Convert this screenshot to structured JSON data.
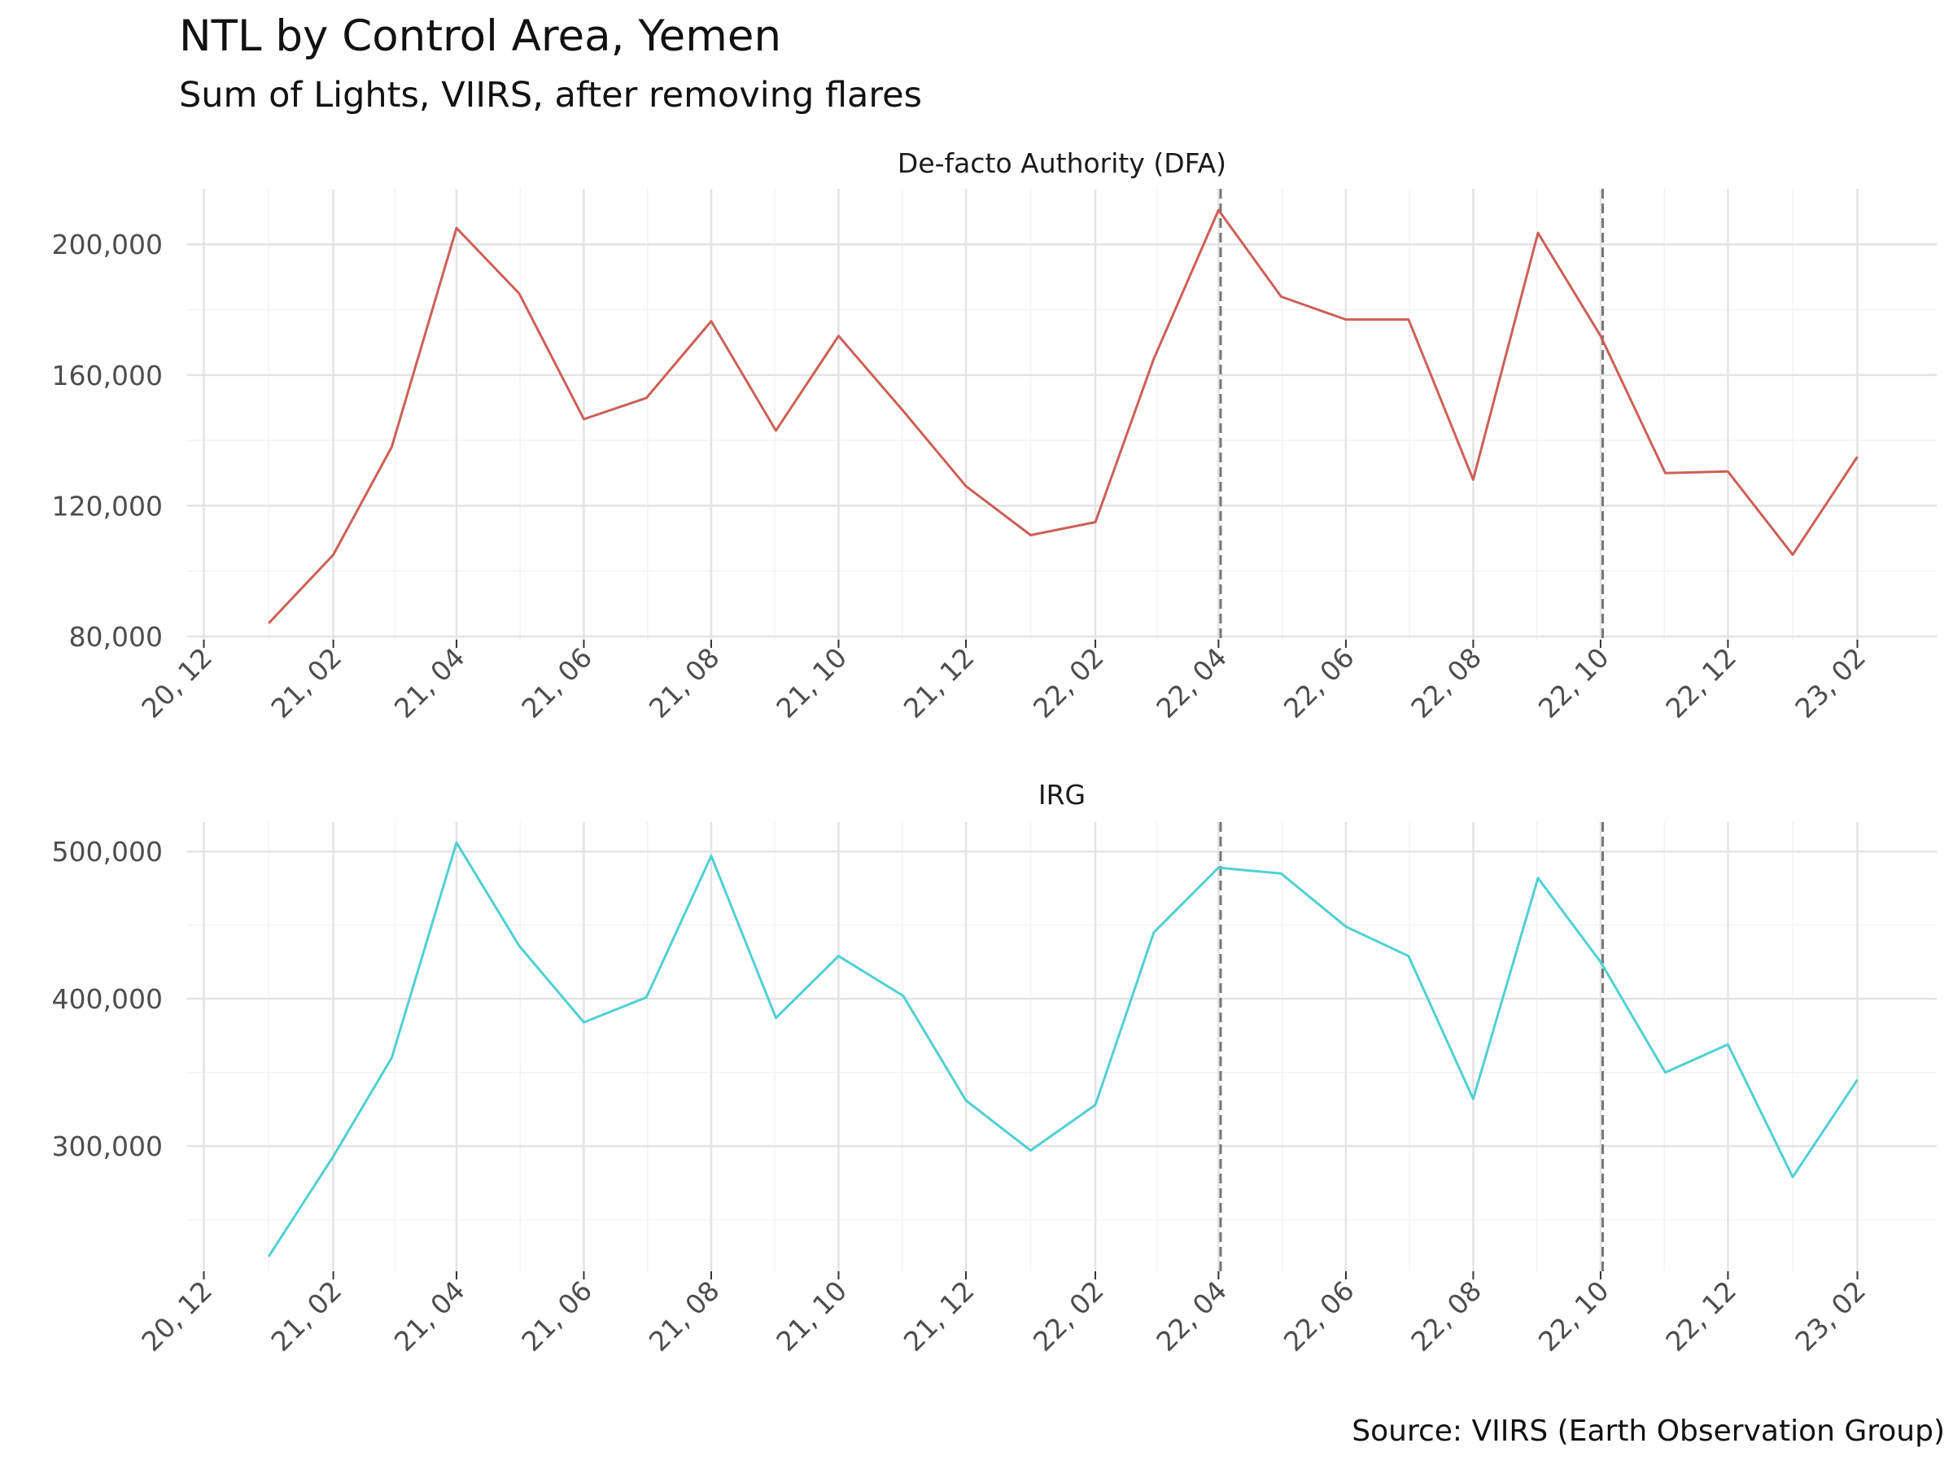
{
  "title": "NTL by Control Area, Yemen",
  "subtitle": "Sum of Lights, VIIRS, after removing flares",
  "source": "Source: VIIRS (Earth Observation Group)",
  "chart_data": {
    "type": "line",
    "x": [
      "2021-01",
      "2021-02",
      "2021-03",
      "2021-04",
      "2021-05",
      "2021-06",
      "2021-07",
      "2021-08",
      "2021-09",
      "2021-10",
      "2021-11",
      "2021-12",
      "2022-01",
      "2022-02",
      "2022-03",
      "2022-04",
      "2022-05",
      "2022-06",
      "2022-07",
      "2022-08",
      "2022-09",
      "2022-10",
      "2022-11",
      "2022-12",
      "2023-01",
      "2023-02"
    ],
    "x_tick_labels": [
      "20, 12",
      "21, 02",
      "21, 04",
      "21, 06",
      "21, 08",
      "21, 10",
      "21, 12",
      "22, 02",
      "22, 04",
      "22, 06",
      "22, 08",
      "22, 10",
      "22, 12",
      "23, 02"
    ],
    "x_tick_dates": [
      "2020-12",
      "2021-02",
      "2021-04",
      "2021-06",
      "2021-08",
      "2021-10",
      "2021-12",
      "2022-02",
      "2022-04",
      "2022-06",
      "2022-08",
      "2022-10",
      "2022-12",
      "2023-02"
    ],
    "xlim": [
      "2020-11-23",
      "2023-03-11"
    ],
    "reference_lines": [
      "2022-04-02",
      "2022-10-02"
    ],
    "grid": true,
    "panels": [
      {
        "name": "De-facto Authority (DFA)",
        "color": "#cd5f57",
        "ylim": [
          79000,
          217000
        ],
        "yticks": [
          80000,
          120000,
          160000,
          200000
        ],
        "ytick_labels": [
          "80,000",
          "120,000",
          "160,000",
          "200,000"
        ],
        "values": [
          84000,
          105000,
          138000,
          205000,
          185000,
          146500,
          153000,
          176500,
          143000,
          172000,
          149000,
          126000,
          111000,
          115000,
          165000,
          210500,
          184000,
          177000,
          177000,
          128000,
          203500,
          172000,
          130000,
          130500,
          105000,
          135000
        ]
      },
      {
        "name": "IRG",
        "color": "#4fd0d3",
        "ylim": [
          215000,
          520000
        ],
        "yticks": [
          300000,
          400000,
          500000
        ],
        "ytick_labels": [
          "300,000",
          "400,000",
          "500,000"
        ],
        "values": [
          225000,
          293000,
          360000,
          506000,
          436000,
          384000,
          401000,
          497000,
          387000,
          429000,
          402000,
          331000,
          297000,
          328000,
          445000,
          489000,
          485000,
          449000,
          429000,
          332000,
          482000,
          425000,
          350000,
          369000,
          279000,
          345000
        ]
      }
    ]
  }
}
